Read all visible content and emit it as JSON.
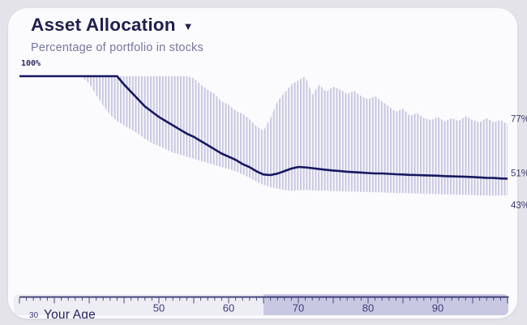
{
  "header": {
    "title": "Asset Allocation",
    "dropdown_icon": "▼",
    "subtitle": "Percentage of portfolio in stocks"
  },
  "labels": {
    "y_top": "100%"
  },
  "axis": {
    "label": "Your Age",
    "start_tick_label": "30",
    "labeled_ticks": [
      50,
      60,
      70,
      80,
      90
    ],
    "highlight_start_age": 65
  },
  "colors": {
    "page_background": "#e3e3e9",
    "card_background": "#fbfbfd",
    "title": "#20204e",
    "subtitle": "#77779f",
    "median_line": "#171760",
    "band_stripe": "#c6c6e1",
    "axis_line": "#32326e",
    "tick": "#4a4a85",
    "tick_label": "#3c3c74",
    "end_label": "#3b3b70",
    "axis_highlight": "#c8c8e3",
    "axis_strip": "#ededf4"
  },
  "chart_data": {
    "type": "area",
    "title": "Asset Allocation",
    "subtitle": "Percentage of portfolio in stocks",
    "xlabel": "Your Age",
    "ylabel": "Percentage of portfolio in stocks",
    "x_range": [
      30,
      100
    ],
    "ylim": [
      0,
      100
    ],
    "grid": false,
    "legend": "none",
    "ages_start": 30,
    "ages_step": 1,
    "retirement_shade_start_age": 65,
    "end_labels": [
      {
        "text": "77%",
        "value": 77,
        "dy": -7
      },
      {
        "text": "51%",
        "value": 51,
        "dy": -7
      },
      {
        "text": "43%",
        "value": 43,
        "dy": 12
      }
    ],
    "series": [
      {
        "name": "upper_bound_pct",
        "values": [
          100,
          100,
          100,
          100,
          100,
          100,
          100,
          100,
          100,
          100,
          100,
          100,
          100,
          100,
          100,
          100,
          100,
          100,
          100,
          100,
          100,
          100,
          100,
          100,
          100,
          99,
          96,
          93.5,
          91.5,
          88,
          86.5,
          83.5,
          82,
          79.5,
          76,
          74,
          80,
          88,
          92,
          96,
          98,
          100,
          91,
          96,
          92.5,
          95,
          93.5,
          91.5,
          93,
          90.5,
          89,
          90.5,
          88,
          85.5,
          83,
          84.5,
          81,
          82.5,
          80,
          79,
          80.5,
          78.5,
          80,
          78.5,
          81,
          79,
          78,
          80,
          78,
          79,
          77
        ]
      },
      {
        "name": "median_pct",
        "values": [
          100,
          100,
          100,
          100,
          100,
          100,
          100,
          100,
          100,
          100,
          100,
          100,
          100,
          100,
          100,
          96,
          92.5,
          89,
          85.5,
          83,
          80.5,
          78.5,
          76.5,
          74.5,
          72.5,
          71,
          69,
          67,
          65,
          63,
          61.5,
          60,
          58,
          56.5,
          54.5,
          53,
          52.7,
          53.4,
          54.6,
          55.8,
          56.6,
          56.4,
          56,
          55.6,
          55.2,
          54.9,
          54.6,
          54.3,
          54.1,
          53.9,
          53.7,
          53.5,
          53.5,
          53.3,
          53.1,
          53,
          52.8,
          52.7,
          52.6,
          52.5,
          52.4,
          52.2,
          52.1,
          52,
          51.9,
          51.8,
          51.6,
          51.4,
          51.3,
          51.1,
          51
        ]
      },
      {
        "name": "lower_bound_pct",
        "values": [
          100,
          100,
          100,
          100,
          100,
          100,
          100,
          100,
          100,
          99.5,
          96.5,
          91,
          86,
          81.5,
          78.5,
          76.5,
          74.5,
          72.5,
          70,
          68,
          66.5,
          65,
          63.5,
          62.5,
          61.5,
          60.5,
          59.5,
          58.5,
          57.5,
          56.5,
          55.5,
          54.5,
          53,
          51.5,
          49.5,
          48,
          47,
          46.2,
          45.6,
          45.2,
          45.4,
          45.6,
          45.4,
          45.2,
          45.3,
          45.1,
          45,
          44.9,
          44.8,
          44.7,
          44.6,
          44.5,
          44.4,
          44.3,
          44.2,
          44.1,
          44,
          43.9,
          43.8,
          43.7,
          43.6,
          43.5,
          43.4,
          43.3,
          43.2,
          43.1,
          43,
          42.9,
          42.9,
          42.9,
          43
        ]
      }
    ]
  }
}
